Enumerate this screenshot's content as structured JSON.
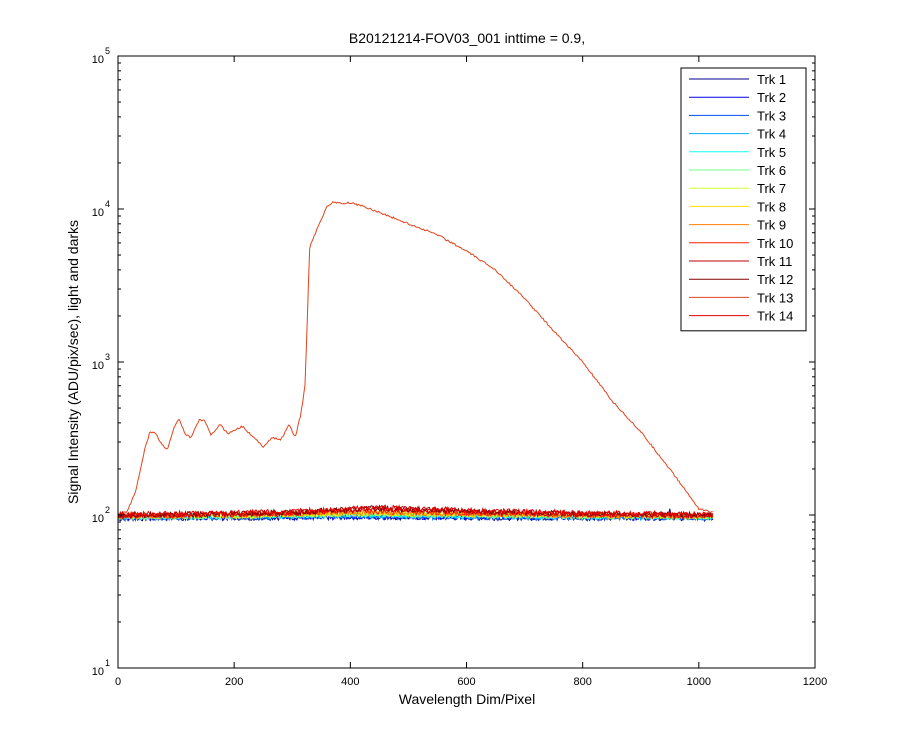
{
  "chart_data": {
    "type": "line",
    "title": "B20121214-FOV03_001 inttime = 0.9,",
    "xlabel": "Wavelength Dim/Pixel",
    "ylabel": "Signal Intensity (ADU/pix/sec), light and darks",
    "xlim": [
      0,
      1200
    ],
    "ylim": [
      10,
      100000
    ],
    "yscale": "log",
    "grid": false,
    "legend_position": "top-right",
    "x_ticks": [
      0,
      200,
      400,
      600,
      800,
      1000,
      1200
    ],
    "x_tick_labels": [
      "0",
      "200",
      "400",
      "600",
      "800",
      "1000",
      "1200"
    ],
    "y_ticks": [
      {
        "value": 10,
        "base": "10",
        "exp": "1"
      },
      {
        "value": 100,
        "base": "10",
        "exp": "2"
      },
      {
        "value": 1000,
        "base": "10",
        "exp": "3"
      },
      {
        "value": 10000,
        "base": "10",
        "exp": "4"
      },
      {
        "value": 100000,
        "base": "10",
        "exp": "5"
      }
    ],
    "series": [
      {
        "name": "Trk 1",
        "color": "#00008f",
        "x": [
          0,
          200,
          400,
          600,
          800,
          946,
          950,
          954,
          1024
        ],
        "y": [
          95,
          96,
          97,
          96,
          96,
          96,
          110,
          96,
          95
        ]
      },
      {
        "name": "Trk 2",
        "color": "#0000ef",
        "x": [
          0,
          200,
          400,
          600,
          800,
          1024
        ],
        "y": [
          96,
          96,
          97,
          97,
          96,
          96
        ]
      },
      {
        "name": "Trk 3",
        "color": "#0050ff",
        "x": [
          0,
          200,
          400,
          600,
          800,
          1024
        ],
        "y": [
          96,
          97,
          98,
          97,
          97,
          96
        ]
      },
      {
        "name": "Trk 4",
        "color": "#00afff",
        "x": [
          0,
          200,
          400,
          600,
          800,
          1024
        ],
        "y": [
          97,
          97,
          99,
          98,
          97,
          97
        ]
      },
      {
        "name": "Trk 5",
        "color": "#10ffef",
        "x": [
          0,
          200,
          400,
          600,
          800,
          1024
        ],
        "y": [
          97,
          98,
          100,
          99,
          98,
          97
        ]
      },
      {
        "name": "Trk 6",
        "color": "#70ff8f",
        "x": [
          0,
          200,
          400,
          600,
          800,
          1024
        ],
        "y": [
          97,
          98,
          101,
          100,
          98,
          97
        ]
      },
      {
        "name": "Trk 7",
        "color": "#cfff30",
        "x": [
          0,
          200,
          400,
          600,
          800,
          1024
        ],
        "y": [
          98,
          99,
          102,
          101,
          99,
          98
        ]
      },
      {
        "name": "Trk 8",
        "color": "#ffdf00",
        "x": [
          0,
          200,
          400,
          600,
          800,
          1024
        ],
        "y": [
          98,
          99,
          103,
          101,
          99,
          98
        ]
      },
      {
        "name": "Trk 9",
        "color": "#ff7f00",
        "x": [
          0,
          200,
          400,
          600,
          800,
          1024
        ],
        "y": [
          98,
          100,
          104,
          102,
          100,
          98
        ]
      },
      {
        "name": "Trk 10",
        "color": "#ff2000",
        "x": [
          0,
          200,
          400,
          600,
          800,
          1024
        ],
        "y": [
          99,
          100,
          106,
          103,
          100,
          99
        ]
      },
      {
        "name": "Trk 11",
        "color": "#bf0000",
        "x": [
          0,
          200,
          300,
          400,
          450,
          600,
          800,
          1024
        ],
        "y": [
          99,
          101,
          103,
          108,
          110,
          105,
          101,
          99
        ]
      },
      {
        "name": "Trk 12",
        "color": "#800000",
        "x": [
          0,
          200,
          300,
          400,
          450,
          600,
          800,
          1024
        ],
        "y": [
          100,
          102,
          104,
          109,
          111,
          106,
          102,
          100
        ]
      },
      {
        "name": "Trk 13",
        "color": "#e4441e",
        "x": [
          0,
          15,
          30,
          45,
          55,
          65,
          75,
          85,
          95,
          105,
          115,
          125,
          140,
          150,
          160,
          175,
          190,
          200,
          215,
          230,
          250,
          265,
          280,
          295,
          305,
          315,
          322,
          330,
          345,
          360,
          372,
          385,
          400,
          420,
          450,
          500,
          550,
          600,
          650,
          700,
          750,
          800,
          850,
          900,
          950,
          1000,
          1024
        ],
        "y": [
          100,
          105,
          140,
          260,
          350,
          340,
          290,
          265,
          360,
          430,
          340,
          320,
          420,
          410,
          330,
          390,
          340,
          360,
          380,
          330,
          280,
          320,
          310,
          390,
          320,
          460,
          700,
          5600,
          7800,
          10400,
          11200,
          10800,
          11000,
          10500,
          9500,
          8000,
          6800,
          5300,
          4000,
          2600,
          1600,
          1000,
          560,
          350,
          200,
          110,
          104
        ]
      },
      {
        "name": "Trk 14",
        "color": "#e60000",
        "x": [
          0,
          200,
          300,
          400,
          450,
          600,
          800,
          1024
        ],
        "y": [
          101,
          103,
          105,
          110,
          112,
          107,
          103,
          101
        ]
      }
    ]
  }
}
